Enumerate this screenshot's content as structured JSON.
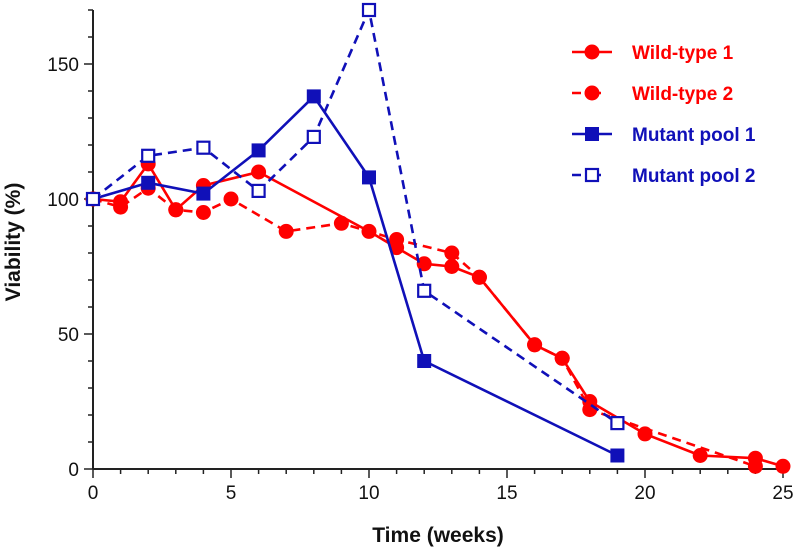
{
  "chart_data": {
    "type": "line",
    "title": "",
    "xlabel": "Time (weeks)",
    "ylabel": "Viability (%)",
    "xlim": [
      0,
      25
    ],
    "ylim": [
      0,
      170
    ],
    "x_ticks": [
      0,
      5,
      10,
      15,
      20,
      25
    ],
    "y_ticks": [
      0,
      50,
      100,
      150
    ],
    "grid": false,
    "legend_position": "top-right",
    "series": [
      {
        "name": "Wild-type 1",
        "color": "#ff0000",
        "line_style": "solid",
        "marker": "filled-circle",
        "points": [
          [
            0,
            100
          ],
          [
            1,
            99
          ],
          [
            2,
            113
          ],
          [
            3,
            96
          ],
          [
            4,
            105
          ],
          [
            6,
            110
          ],
          [
            10,
            88
          ],
          [
            11,
            82
          ],
          [
            12,
            76
          ],
          [
            13,
            75
          ],
          [
            14,
            71
          ],
          [
            16,
            46
          ],
          [
            17,
            41
          ],
          [
            18,
            25
          ],
          [
            20,
            13
          ],
          [
            22,
            5
          ],
          [
            24,
            4
          ],
          [
            25,
            1
          ]
        ]
      },
      {
        "name": "Wild-type 2",
        "color": "#ff0000",
        "line_style": "dashed",
        "marker": "filled-circle",
        "points": [
          [
            0,
            100
          ],
          [
            1,
            97
          ],
          [
            2,
            104
          ],
          [
            3,
            96
          ],
          [
            4,
            95
          ],
          [
            5,
            100
          ],
          [
            7,
            88
          ],
          [
            9,
            91
          ],
          [
            11,
            85
          ],
          [
            13,
            80
          ],
          [
            14,
            71
          ],
          [
            16,
            46
          ],
          [
            17,
            41
          ],
          [
            18,
            22
          ],
          [
            24,
            1
          ]
        ]
      },
      {
        "name": "Mutant pool 1",
        "color": "#1010b8",
        "line_style": "solid",
        "marker": "filled-square",
        "points": [
          [
            0,
            100
          ],
          [
            2,
            106
          ],
          [
            4,
            102
          ],
          [
            6,
            118
          ],
          [
            8,
            138
          ],
          [
            10,
            108
          ],
          [
            12,
            40
          ],
          [
            19,
            5
          ]
        ]
      },
      {
        "name": "Mutant pool 2",
        "color": "#1010b8",
        "line_style": "dashed",
        "marker": "open-square",
        "points": [
          [
            0,
            100
          ],
          [
            2,
            116
          ],
          [
            4,
            119
          ],
          [
            6,
            103
          ],
          [
            8,
            123
          ],
          [
            10,
            170
          ],
          [
            12,
            66
          ],
          [
            19,
            17
          ]
        ]
      }
    ]
  }
}
